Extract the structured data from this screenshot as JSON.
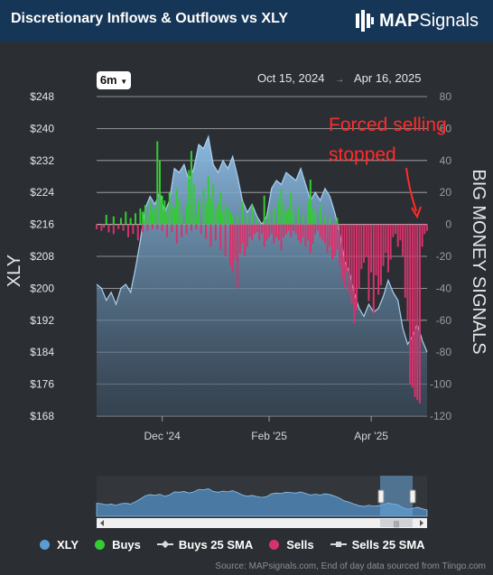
{
  "header": {
    "title": "Discretionary Inflows & Outflows vs XLY",
    "logo_text_bold": "MAP",
    "logo_text_regular": "Signals"
  },
  "controls": {
    "period": "6m",
    "date_from": "Oct 15, 2024",
    "date_to": "Apr 16, 2025"
  },
  "annotation": {
    "line1": "Forced selling",
    "line2": "stopped"
  },
  "legend": {
    "xly": "XLY",
    "buys": "Buys",
    "buys_sma": "Buys 25 SMA",
    "sells": "Sells",
    "sells_sma": "Sells 25 SMA"
  },
  "source": "Source: MAPsignals.com, End of day data sourced from Tiingo.com",
  "colors": {
    "xly": "#5b9bd5",
    "buys": "#33cc33",
    "sells": "#d6336c",
    "annotation": "#ff2b2b",
    "header_bg": "#163657",
    "panel_bg": "#2b2e33"
  },
  "chart_data": {
    "type": "line",
    "title": "Discretionary Inflows & Outflows vs XLY",
    "left_axis": {
      "label": "XLY",
      "ylim": [
        168,
        248
      ],
      "ticks": [
        "$248",
        "$240",
        "$232",
        "$224",
        "$216",
        "$208",
        "$200",
        "$192",
        "$184",
        "$176",
        "$168"
      ]
    },
    "right_axis": {
      "label": "BIG MONEY SIGNALS",
      "ylim": [
        -120,
        80
      ],
      "ticks": [
        "80",
        "60",
        "40",
        "20",
        "0",
        "-20",
        "-40",
        "-60",
        "-80",
        "-100",
        "-120"
      ]
    },
    "x_ticks": [
      "Dec '24",
      "Feb '25",
      "Apr '25"
    ],
    "xly_points": [
      [
        0,
        201
      ],
      [
        2,
        200
      ],
      [
        4,
        197
      ],
      [
        6,
        199
      ],
      [
        8,
        196
      ],
      [
        10,
        200
      ],
      [
        12,
        201
      ],
      [
        14,
        199
      ],
      [
        16,
        205
      ],
      [
        18,
        212
      ],
      [
        20,
        220
      ],
      [
        22,
        223
      ],
      [
        24,
        221
      ],
      [
        26,
        224
      ],
      [
        28,
        219
      ],
      [
        30,
        222
      ],
      [
        32,
        230
      ],
      [
        34,
        229
      ],
      [
        36,
        231
      ],
      [
        38,
        227
      ],
      [
        40,
        230
      ],
      [
        42,
        236
      ],
      [
        44,
        235
      ],
      [
        46,
        238
      ],
      [
        48,
        231
      ],
      [
        50,
        229
      ],
      [
        52,
        232
      ],
      [
        54,
        230
      ],
      [
        56,
        233
      ],
      [
        58,
        228
      ],
      [
        60,
        222
      ],
      [
        62,
        219
      ],
      [
        64,
        221
      ],
      [
        66,
        218
      ],
      [
        68,
        216
      ],
      [
        70,
        218
      ],
      [
        72,
        225
      ],
      [
        74,
        227
      ],
      [
        76,
        226
      ],
      [
        78,
        229
      ],
      [
        80,
        228
      ],
      [
        82,
        227
      ],
      [
        84,
        230
      ],
      [
        86,
        226
      ],
      [
        88,
        222
      ],
      [
        90,
        224
      ],
      [
        92,
        222
      ],
      [
        94,
        225
      ],
      [
        96,
        223
      ],
      [
        98,
        219
      ],
      [
        100,
        214
      ],
      [
        102,
        207
      ],
      [
        104,
        204
      ],
      [
        106,
        199
      ],
      [
        108,
        195
      ],
      [
        110,
        193
      ],
      [
        112,
        196
      ],
      [
        114,
        194
      ],
      [
        116,
        195
      ],
      [
        118,
        198
      ],
      [
        120,
        202
      ],
      [
        122,
        199
      ],
      [
        124,
        197
      ],
      [
        126,
        190
      ],
      [
        128,
        186
      ],
      [
        130,
        188
      ],
      [
        132,
        191
      ],
      [
        134,
        187
      ],
      [
        136,
        184
      ]
    ],
    "buys": [
      [
        4,
        6
      ],
      [
        7,
        5
      ],
      [
        10,
        4
      ],
      [
        12,
        8
      ],
      [
        14,
        4
      ],
      [
        16,
        7
      ],
      [
        18,
        10
      ],
      [
        19,
        8
      ],
      [
        20,
        12
      ],
      [
        21,
        5
      ],
      [
        22,
        14
      ],
      [
        23,
        9
      ],
      [
        24,
        10
      ],
      [
        25,
        52
      ],
      [
        26,
        40
      ],
      [
        27,
        18
      ],
      [
        28,
        15
      ],
      [
        29,
        8
      ],
      [
        30,
        20
      ],
      [
        31,
        12
      ],
      [
        32,
        10
      ],
      [
        33,
        22
      ],
      [
        34,
        16
      ],
      [
        35,
        6
      ],
      [
        37,
        12
      ],
      [
        38,
        34
      ],
      [
        39,
        46
      ],
      [
        40,
        25
      ],
      [
        41,
        5
      ],
      [
        42,
        15
      ],
      [
        44,
        22
      ],
      [
        45,
        13
      ],
      [
        46,
        30
      ],
      [
        47,
        16
      ],
      [
        48,
        25
      ],
      [
        49,
        10
      ],
      [
        50,
        13
      ],
      [
        51,
        20
      ],
      [
        52,
        8
      ],
      [
        53,
        12
      ],
      [
        54,
        10
      ],
      [
        55,
        8
      ],
      [
        56,
        5
      ],
      [
        58,
        6
      ],
      [
        60,
        14
      ],
      [
        62,
        6
      ],
      [
        64,
        12
      ],
      [
        66,
        4
      ],
      [
        69,
        18
      ],
      [
        71,
        8
      ],
      [
        73,
        10
      ],
      [
        75,
        16
      ],
      [
        76,
        22
      ],
      [
        77,
        12
      ],
      [
        78,
        8
      ],
      [
        79,
        10
      ],
      [
        80,
        20
      ],
      [
        81,
        8
      ],
      [
        83,
        12
      ],
      [
        85,
        6
      ],
      [
        87,
        15
      ],
      [
        88,
        28
      ],
      [
        89,
        10
      ],
      [
        90,
        8
      ],
      [
        92,
        12
      ],
      [
        94,
        5
      ],
      [
        96,
        4
      ],
      [
        99,
        4
      ]
    ],
    "sells": [
      [
        0,
        -3
      ],
      [
        2,
        -4
      ],
      [
        3,
        -2
      ],
      [
        5,
        -5
      ],
      [
        7,
        -6
      ],
      [
        9,
        -3
      ],
      [
        11,
        -4
      ],
      [
        13,
        -8
      ],
      [
        15,
        -6
      ],
      [
        17,
        -10
      ],
      [
        19,
        -5
      ],
      [
        21,
        -4
      ],
      [
        23,
        -3
      ],
      [
        25,
        -3
      ],
      [
        27,
        -4
      ],
      [
        29,
        -8
      ],
      [
        31,
        -5
      ],
      [
        33,
        -12
      ],
      [
        35,
        -8
      ],
      [
        37,
        -6
      ],
      [
        39,
        -4
      ],
      [
        41,
        -3
      ],
      [
        43,
        -6
      ],
      [
        45,
        -9
      ],
      [
        47,
        -14
      ],
      [
        49,
        -10
      ],
      [
        51,
        -16
      ],
      [
        53,
        -20
      ],
      [
        55,
        -26
      ],
      [
        56,
        -30
      ],
      [
        57,
        -22
      ],
      [
        58,
        -40
      ],
      [
        59,
        -18
      ],
      [
        60,
        -12
      ],
      [
        61,
        -20
      ],
      [
        62,
        -14
      ],
      [
        63,
        -8
      ],
      [
        64,
        -10
      ],
      [
        65,
        -6
      ],
      [
        66,
        -5
      ],
      [
        67,
        -10
      ],
      [
        68,
        -6
      ],
      [
        69,
        -14
      ],
      [
        70,
        -10
      ],
      [
        71,
        -8
      ],
      [
        72,
        -6
      ],
      [
        73,
        -12
      ],
      [
        74,
        -8
      ],
      [
        75,
        -10
      ],
      [
        76,
        -16
      ],
      [
        77,
        -8
      ],
      [
        78,
        -6
      ],
      [
        79,
        -4
      ],
      [
        80,
        -8
      ],
      [
        81,
        -4
      ],
      [
        82,
        -6
      ],
      [
        83,
        -10
      ],
      [
        84,
        -12
      ],
      [
        85,
        -8
      ],
      [
        86,
        -14
      ],
      [
        87,
        -10
      ],
      [
        88,
        -18
      ],
      [
        89,
        -12
      ],
      [
        90,
        -6
      ],
      [
        91,
        -4
      ],
      [
        92,
        -8
      ],
      [
        93,
        -10
      ],
      [
        94,
        -12
      ],
      [
        95,
        -18
      ],
      [
        96,
        -14
      ],
      [
        97,
        -22
      ],
      [
        98,
        -20
      ],
      [
        99,
        -16
      ],
      [
        100,
        -26
      ],
      [
        101,
        -34
      ],
      [
        102,
        -40
      ],
      [
        103,
        -30
      ],
      [
        104,
        -44
      ],
      [
        105,
        -50
      ],
      [
        106,
        -62
      ],
      [
        107,
        -54
      ],
      [
        108,
        -40
      ],
      [
        109,
        -28
      ],
      [
        110,
        -24
      ],
      [
        111,
        -20
      ],
      [
        112,
        -48
      ],
      [
        113,
        -30
      ],
      [
        114,
        -56
      ],
      [
        115,
        -32
      ],
      [
        116,
        -44
      ],
      [
        117,
        -38
      ],
      [
        118,
        -26
      ],
      [
        119,
        -18
      ],
      [
        120,
        -30
      ],
      [
        121,
        -22
      ],
      [
        122,
        -8
      ],
      [
        123,
        -6
      ],
      [
        124,
        -14
      ],
      [
        125,
        -10
      ],
      [
        126,
        -20
      ],
      [
        127,
        -46
      ],
      [
        128,
        -60
      ],
      [
        129,
        -100
      ],
      [
        130,
        -102
      ],
      [
        131,
        -108
      ],
      [
        132,
        -110
      ],
      [
        133,
        -112
      ],
      [
        134,
        -14
      ],
      [
        135,
        -6
      ],
      [
        136,
        -4
      ]
    ],
    "grid": true,
    "legend_position": "bottom"
  }
}
